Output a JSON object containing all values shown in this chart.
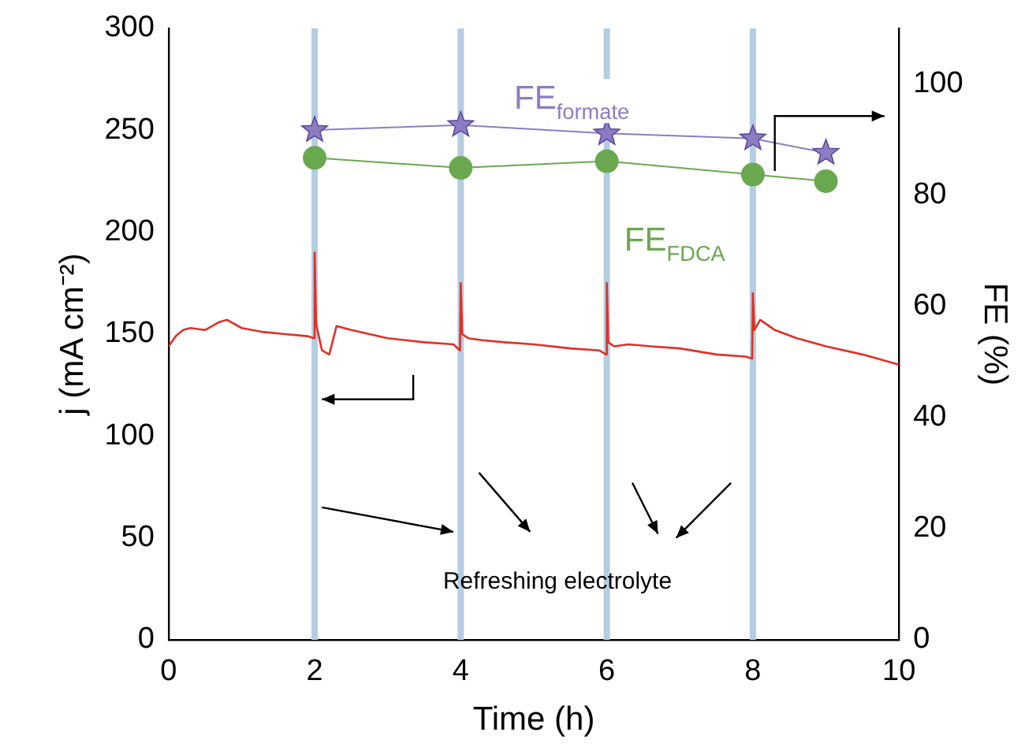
{
  "chart_data": {
    "type": "line",
    "xlabel": "Time (h)",
    "ylabel": "j (mA cm⁻²)",
    "y2label": "FE (%)",
    "xlim": [
      0,
      10
    ],
    "xticks": [
      0,
      2,
      4,
      6,
      8,
      10
    ],
    "ylim": [
      0,
      300
    ],
    "yticks": [
      0,
      50,
      100,
      150,
      200,
      250,
      300
    ],
    "y2lim": [
      0,
      110
    ],
    "y2ticks": [
      0,
      20,
      40,
      60,
      80,
      100
    ],
    "grid": false,
    "legend": false,
    "series": [
      {
        "color": "#e03028",
        "marker": "none",
        "x": [
          0,
          0.1,
          0.2,
          0.3,
          0.5,
          0.7,
          0.8,
          1.0,
          1.3,
          1.6,
          1.9,
          1.99,
          2.0,
          2.02,
          2.1,
          2.2,
          2.3,
          2.5,
          3.0,
          3.5,
          3.9,
          3.99,
          4.0,
          4.02,
          4.1,
          4.3,
          4.6,
          5.0,
          5.5,
          5.9,
          5.99,
          6.0,
          6.02,
          6.1,
          6.3,
          6.6,
          7.0,
          7.5,
          7.9,
          7.99,
          8.0,
          8.02,
          8.1,
          8.3,
          8.6,
          9.0,
          9.5,
          10.0
        ],
        "values": [
          144,
          149,
          152,
          153,
          152,
          156,
          157,
          153,
          151,
          150,
          149,
          148,
          190,
          155,
          142,
          140,
          154,
          152,
          148,
          146,
          145,
          142,
          175,
          150,
          148,
          147,
          146,
          145,
          143,
          142,
          140,
          175,
          146,
          144,
          145,
          144,
          143,
          140,
          139,
          138,
          170,
          152,
          157,
          152,
          148,
          144,
          140,
          135
        ]
      },
      {
        "name": "FE$_{formate}$",
        "color": "#8e7cc3",
        "axis": "y2",
        "marker": "star",
        "x": [
          2,
          4,
          6,
          8,
          9
        ],
        "values": [
          91.7,
          92.6,
          91.1,
          90.2,
          87.6
        ]
      },
      {
        "name": "FE$_{FDCA}$",
        "color": "#6aa84f",
        "axis": "y2",
        "marker": "circle",
        "x": [
          2,
          4,
          6,
          8,
          9
        ],
        "values": [
          86.7,
          84.9,
          86.1,
          83.7,
          82.5
        ]
      }
    ],
    "ref_lines": [
      {
        "axis": "x",
        "value": 2,
        "color": "#b4cde0"
      },
      {
        "axis": "x",
        "value": 4,
        "color": "#b4cde0"
      },
      {
        "axis": "x",
        "value": 6,
        "color": "#b4cde0"
      },
      {
        "axis": "x",
        "value": 8,
        "color": "#b4cde0"
      }
    ],
    "annotations": [
      "Refreshing electrolyte"
    ]
  }
}
